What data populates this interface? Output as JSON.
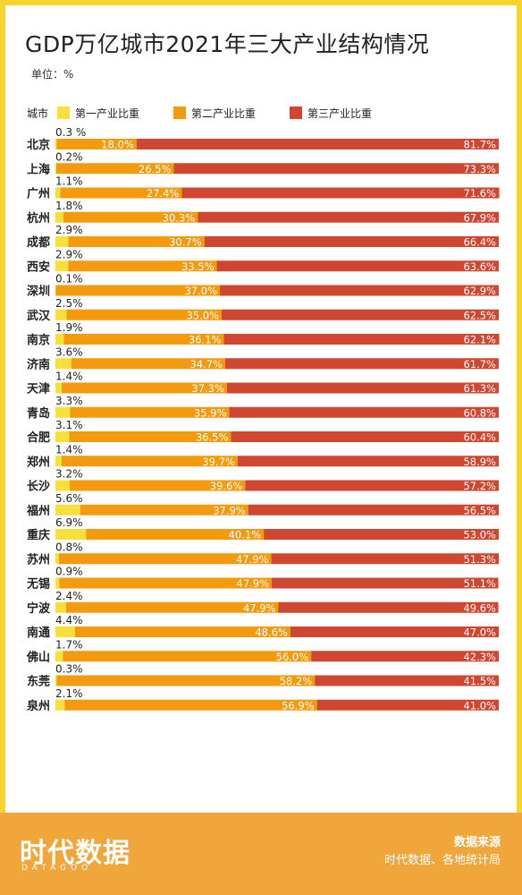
{
  "header": {
    "title": "GDP万亿城市2021年三大产业结构情况",
    "unit": "单位：%"
  },
  "legend": {
    "axis_label": "城市",
    "items": [
      {
        "label": "第一产业比重",
        "color": "#f7df3c"
      },
      {
        "label": "第二产业比重",
        "color": "#f39a0f"
      },
      {
        "label": "第三产业比重",
        "color": "#cf4731"
      }
    ]
  },
  "chart_data": {
    "type": "bar",
    "orientation": "horizontal",
    "stacked": true,
    "categories": [
      "北京",
      "上海",
      "广州",
      "杭州",
      "成都",
      "西安",
      "深圳",
      "武汉",
      "南京",
      "济南",
      "天津",
      "青岛",
      "合肥",
      "郑州",
      "长沙",
      "福州",
      "重庆",
      "苏州",
      "无锡",
      "宁波",
      "南通",
      "佛山",
      "东莞",
      "泉州"
    ],
    "series": [
      {
        "name": "第一产业比重",
        "color": "#f7df3c",
        "values": [
          0.3,
          0.2,
          1.1,
          1.8,
          2.9,
          2.9,
          0.1,
          2.5,
          1.9,
          3.6,
          1.4,
          3.3,
          3.1,
          1.4,
          3.2,
          5.6,
          6.9,
          0.8,
          0.9,
          2.4,
          4.4,
          1.7,
          0.3,
          2.1
        ],
        "labels": [
          "0.3 %",
          "0.2%",
          "1.1%",
          "1.8%",
          "2.9%",
          "2.9%",
          "0.1%",
          "2.5%",
          "1.9%",
          "3.6%",
          "1.4%",
          "3.3%",
          "3.1%",
          "1.4%",
          "3.2%",
          "5.6%",
          "6.9%",
          "0.8%",
          "0.9%",
          "2.4%",
          "4.4%",
          "1.7%",
          "0.3%",
          "2.1%"
        ]
      },
      {
        "name": "第二产业比重",
        "color": "#f39a0f",
        "values": [
          18.0,
          26.5,
          27.4,
          30.3,
          30.7,
          33.5,
          37.0,
          35.0,
          36.1,
          34.7,
          37.3,
          35.9,
          36.5,
          39.7,
          39.6,
          37.9,
          40.1,
          47.9,
          47.9,
          47.9,
          48.6,
          56.0,
          58.2,
          56.9
        ],
        "labels": [
          "18.0%",
          "26.5%",
          "27.4%",
          "30.3%",
          "30.7%",
          "33.5%",
          "37.0%",
          "35.0%",
          "36.1%",
          "34.7%",
          "37.3%",
          "35.9%",
          "36.5%",
          "39.7%",
          "39.6%",
          "37.9%",
          "40.1%",
          "47.9%",
          "47.9%",
          "47.9%",
          "48.6%",
          "56.0%",
          "58.2%",
          "56.9%"
        ]
      },
      {
        "name": "第三产业比重",
        "color": "#cf4731",
        "values": [
          81.7,
          73.3,
          71.6,
          67.9,
          66.4,
          63.6,
          62.9,
          62.5,
          62.1,
          61.7,
          61.3,
          60.8,
          60.4,
          58.9,
          57.2,
          56.5,
          53.0,
          51.3,
          51.1,
          49.6,
          47.0,
          42.3,
          41.5,
          41.0
        ],
        "labels": [
          "81.7%",
          "73.3%",
          "71.6%",
          "67.9%",
          "66.4%",
          "63.6%",
          "62.9%",
          "62.5%",
          "62.1%",
          "61.7%",
          "61.3%",
          "60.8%",
          "60.4%",
          "58.9%",
          "57.2%",
          "56.5%",
          "53.0%",
          "51.3%",
          "51.1%",
          "49.6%",
          "47.0%",
          "42.3%",
          "41.5%",
          "41.0%"
        ]
      }
    ],
    "xlim": [
      0,
      100
    ]
  },
  "footer": {
    "logo": "时代数据",
    "logo_sub": "DATAGOO",
    "source_title": "数据来源",
    "source_text": "时代数据、各地统计局"
  }
}
